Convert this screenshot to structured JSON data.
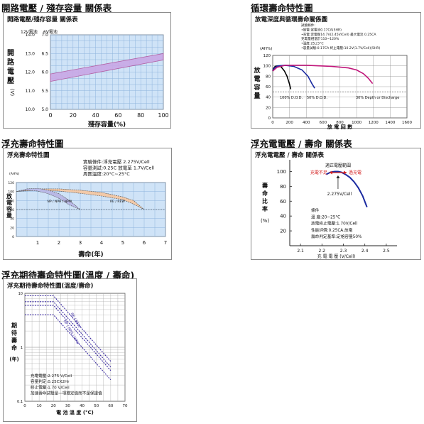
{
  "charts": [
    {
      "section_title": "開路電壓 / 殘存容量 關係表",
      "panel_title": "開路電壓/殘存容量 關係表",
      "colors": {
        "band": "#c9a8e6",
        "band_stroke": "#b0549c",
        "plot_bg": "#cfe3f7",
        "grid": "#8fb4dd"
      },
      "chart_data": {
        "type": "area",
        "title": "開路電壓/殘存容量 關係表",
        "xlabel": "殘存容量(%)",
        "ylabel": "開路電壓(V)",
        "y_axis_headers": [
          "12V電池",
          "6V電池"
        ],
        "x_ticks": [
          "0",
          "20",
          "40",
          "60",
          "80",
          "100"
        ],
        "y_ticks_12v": [
          "14.0",
          "13.0",
          "12.0",
          "11.0",
          "10.0"
        ],
        "y_ticks_6v": [
          "7.0",
          "6.5",
          "6.0",
          "5.5",
          "5.0"
        ],
        "xlim": [
          0,
          100
        ],
        "ylim": [
          10.0,
          14.0
        ],
        "series": [
          {
            "values_x": [
              0,
              100
            ],
            "values_lower": [
              11.5,
              12.65
            ],
            "values_upper": [
              11.9,
              13.0
            ]
          }
        ]
      }
    },
    {
      "section_title": "循環壽命特性圖",
      "panel_title": "放電深度與循環壽命關係圖",
      "colors": {
        "deep": "#000000",
        "mid": "#1a2aa0",
        "shallow": "#c0167a",
        "plot_bg": "#ffffff",
        "grid": "#888888"
      },
      "chart_data": {
        "type": "line",
        "title": "放電深度與循環壽命關係圖",
        "xlabel": "放 電 回 數",
        "ylabel": "放電容量",
        "y_unit": "(AH%)",
        "conditions": [
          "試驗條件:",
          "•放電:定電流0.17CA(5HR)",
          "•充電:定電壓14.7V(2.45V/Cell) 最大電流 0.25CA",
          "充電量相當於110~120%",
          "•溫度:25±5°C",
          "•容量試驗:0.17CA  終止電壓:10.2V(1.7V/Cell)(5HR)"
        ],
        "x_ticks": [
          "0",
          "200",
          "400",
          "600",
          "800",
          "1000",
          "1200",
          "1400",
          "1600"
        ],
        "y_ticks": [
          "0",
          "20",
          "40",
          "60",
          "80",
          "100",
          "120"
        ],
        "xlim": [
          0,
          1600
        ],
        "ylim": [
          0,
          120
        ],
        "annotations": [
          "100% D.O.D.",
          "50% D.O.D.",
          "30% Depth or Discharge"
        ],
        "series": [
          {
            "x": [
              0,
              10,
              30,
              60,
              100,
              140,
              170,
              200,
              215
            ],
            "y": [
              90,
              95,
              99,
              100,
              98,
              90,
              80,
              65,
              55
            ]
          },
          {
            "x": [
              0,
              20,
              60,
              150,
              250,
              350,
              420,
              470,
              500
            ],
            "y": [
              90,
              96,
              100,
              101,
              99,
              92,
              80,
              65,
              57
            ]
          },
          {
            "x": [
              0,
              50,
              150,
              400,
              700,
              900,
              1000,
              1080,
              1140,
              1190
            ],
            "y": [
              90,
              97,
              101,
              101,
              99,
              96,
              92,
              85,
              76,
              66
            ]
          }
        ]
      }
    },
    {
      "section_title": "浮充壽命特性圖",
      "panel_title": "浮充壽命特性圖",
      "colors": {
        "np": "#b9b9e6",
        "re": "#f2c9a8",
        "plot_bg": "#cfe3f7",
        "grid": "#8fb4dd"
      },
      "chart_data": {
        "type": "area",
        "title": "浮充壽命特性圖",
        "xlabel": "壽命(年)",
        "ylabel": "放電容量",
        "y_unit": "(AH%)",
        "conditions": [
          "實驗條件:浮充電壓 2.275V/Cell",
          "容量測試:0.25C 放電至 1.7V/Cell",
          "周圍溫度:20°C~25°C"
        ],
        "x_ticks": [
          "1",
          "2",
          "3",
          "4",
          "5",
          "6",
          "7"
        ],
        "y_ticks": [
          "120",
          "100",
          "80",
          "60",
          "40",
          "20",
          "0"
        ],
        "xlim": [
          0,
          7
        ],
        "ylim": [
          0,
          120
        ],
        "series": [
          {
            "name": "NP / NPH / NPW",
            "x": [
              0,
              0.5,
              1.0,
              1.5,
              2.0,
              2.5,
              3.0
            ],
            "y_upper": [
              100,
              106,
              107,
              103,
              95,
              80,
              60
            ],
            "y_lower": [
              100,
              103,
              101,
              95,
              85,
              70,
              60
            ]
          },
          {
            "name": "RE / REW",
            "x": [
              0,
              1,
              2,
              3,
              4,
              5,
              5.5,
              6.0
            ],
            "y_upper": [
              100,
              106,
              106,
              103,
              98,
              88,
              80,
              60
            ],
            "y_lower": [
              100,
              103,
              101,
              96,
              90,
              82,
              72,
              60
            ]
          }
        ]
      }
    },
    {
      "section_title": "浮充電電壓 / 壽命 關係表",
      "panel_title": "浮充電電壓 / 壽命 關係表",
      "colors": {
        "curve": "#1a2aa0",
        "arrow": "#d42020",
        "label_low": "#d42020",
        "label_high": "#d42020"
      },
      "chart_data": {
        "type": "line",
        "title": "浮充電電壓 / 壽命 關係表",
        "xlabel": "充 電 電 壓 (V/Cell)",
        "ylabel": "壽命比率",
        "y_unit": "(%)",
        "x_ticks": [
          "2.1",
          "2.2",
          "2.3",
          "2.4",
          "2.5"
        ],
        "y_ticks": [
          "100",
          "80",
          "60",
          "40",
          "20"
        ],
        "xlim": [
          2.05,
          2.55
        ],
        "ylim": [
          0,
          110
        ],
        "annotations": {
          "range_title": "適正電壓範圍",
          "low": "充電不足",
          "high": "過充電",
          "point": "2.275V/Cell"
        },
        "conditions": [
          "條件",
          "溫 度:20~25°C",
          "放電終止電壓:1.70V/Cell",
          "性能評價:0.25CA.放電",
          "壽命判定基準:定格容量50%"
        ],
        "series": [
          {
            "x": [
              2.22,
              2.24,
              2.26,
              2.275,
              2.29,
              2.31,
              2.33,
              2.35,
              2.37,
              2.39,
              2.41
            ],
            "y": [
              96,
              99,
              100,
              100,
              99,
              96,
              92,
              86,
              78,
              67,
              52
            ]
          }
        ]
      }
    },
    {
      "section_title": "浮充期待壽命特性圖(溫度 / 壽命)",
      "panel_title": "浮充期待壽命特性圖(溫度/壽命)",
      "colors": {
        "line": "#3a2aa0",
        "plot_bg": "#ffffff",
        "grid": "#aaaaaa"
      },
      "chart_data": {
        "type": "line",
        "title": "浮充期待壽命特性圖(溫度/壽命)",
        "xlabel": "電 池 溫 度 (°C)",
        "ylabel": "期待壽命(年)",
        "x_ticks": [
          "0",
          "10",
          "20",
          "30",
          "40",
          "50",
          "60",
          "70"
        ],
        "y_ticks": [
          "10",
          "1",
          "0.1"
        ],
        "xlim": [
          0,
          70
        ],
        "ylim": [
          0.1,
          10
        ],
        "y_scale": "log",
        "annotations": [
          "RE / REW",
          "NP / NPH / NPW"
        ],
        "conditions": [
          "充電電壓:2.275 V/Cell",
          "容量判定:0.25CX2Hr",
          "終止電壓:1.70 V/Cell",
          "加速壽命試驗是一項推定值而不是保證值"
        ],
        "series": [
          {
            "name": "RE / REW",
            "x": [
              0,
              20,
              30,
              40,
              50,
              60
            ],
            "y": [
              9.0,
              9.0,
              4.5,
              2.2,
              1.1,
              0.55
            ],
            "y2": [
              7.0,
              7.0,
              3.5,
              1.75,
              0.87,
              0.43
            ]
          },
          {
            "name": "NP / NPH / NPW",
            "x": [
              0,
              20,
              30,
              40,
              50,
              60
            ],
            "y": [
              6.0,
              6.0,
              3.0,
              1.5,
              0.75,
              0.37
            ],
            "y2": [
              4.0,
              4.0,
              2.0,
              1.0,
              0.5,
              0.25
            ]
          }
        ]
      }
    }
  ]
}
